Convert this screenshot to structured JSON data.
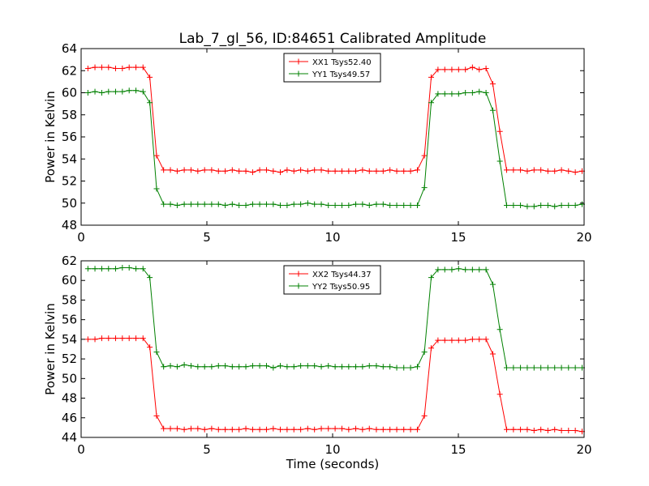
{
  "figure": {
    "title": "Lab_7_gl_56, ID:84651 Calibrated Amplitude"
  },
  "chart_data": [
    {
      "type": "line",
      "title": "Lab_7_gl_56, ID:84651 Calibrated Amplitude",
      "xlabel": "",
      "ylabel": "Power in Kelvin",
      "xlim": [
        0,
        20
      ],
      "ylim": [
        48,
        64
      ],
      "xticks": [
        0,
        5,
        10,
        15,
        20
      ],
      "yticks": [
        48,
        50,
        52,
        54,
        56,
        58,
        60,
        62,
        64
      ],
      "legend_position": "top-center",
      "grid": false,
      "x": [
        0.27,
        0.55,
        0.82,
        1.09,
        1.37,
        1.64,
        1.91,
        2.18,
        2.46,
        2.73,
        3.0,
        3.28,
        3.55,
        3.82,
        4.1,
        4.37,
        4.64,
        4.91,
        5.19,
        5.46,
        5.73,
        6.01,
        6.28,
        6.55,
        6.82,
        7.1,
        7.37,
        7.64,
        7.92,
        8.19,
        8.46,
        8.73,
        9.01,
        9.28,
        9.55,
        9.83,
        10.1,
        10.37,
        10.64,
        10.92,
        11.19,
        11.46,
        11.74,
        12.01,
        12.28,
        12.55,
        12.83,
        13.1,
        13.37,
        13.65,
        13.92,
        14.19,
        14.46,
        14.74,
        15.01,
        15.28,
        15.56,
        15.83,
        16.1,
        16.37,
        16.65,
        16.92,
        17.19,
        17.47,
        17.74,
        18.01,
        18.28,
        18.56,
        18.83,
        19.1,
        19.38,
        19.65,
        19.92
      ],
      "series": [
        {
          "name": "XX1 Tsys52.40",
          "color": "#ff0000",
          "values": [
            62.2,
            62.3,
            62.3,
            62.3,
            62.2,
            62.2,
            62.3,
            62.3,
            62.3,
            61.4,
            54.3,
            53.0,
            53.0,
            52.9,
            53.0,
            53.0,
            52.9,
            53.0,
            53.0,
            52.9,
            52.9,
            53.0,
            52.9,
            52.9,
            52.8,
            53.0,
            53.0,
            52.9,
            52.8,
            53.0,
            52.9,
            53.0,
            52.9,
            53.0,
            53.0,
            52.9,
            52.9,
            52.9,
            52.9,
            52.9,
            53.0,
            52.9,
            52.9,
            52.9,
            53.0,
            52.9,
            52.9,
            52.9,
            53.0,
            54.3,
            61.4,
            62.1,
            62.1,
            62.1,
            62.1,
            62.1,
            62.3,
            62.1,
            62.2,
            60.8,
            56.5,
            53.0,
            53.0,
            53.0,
            52.9,
            53.0,
            53.0,
            52.9,
            52.9,
            53.0,
            52.9,
            52.8,
            52.9
          ]
        },
        {
          "name": "YY1 Tsys49.57",
          "color": "#008000",
          "values": [
            60.0,
            60.1,
            60.0,
            60.1,
            60.1,
            60.1,
            60.2,
            60.2,
            60.1,
            59.1,
            51.3,
            49.9,
            49.9,
            49.8,
            49.9,
            49.9,
            49.9,
            49.9,
            49.9,
            49.9,
            49.8,
            49.9,
            49.8,
            49.8,
            49.9,
            49.9,
            49.9,
            49.9,
            49.8,
            49.8,
            49.9,
            49.9,
            50.0,
            49.9,
            49.9,
            49.8,
            49.8,
            49.8,
            49.8,
            49.9,
            49.9,
            49.8,
            49.9,
            49.9,
            49.8,
            49.8,
            49.8,
            49.8,
            49.8,
            51.4,
            59.1,
            59.9,
            59.9,
            59.9,
            59.9,
            60.0,
            60.0,
            60.1,
            60.0,
            58.4,
            53.8,
            49.8,
            49.8,
            49.8,
            49.7,
            49.7,
            49.8,
            49.8,
            49.7,
            49.8,
            49.8,
            49.8,
            49.9
          ]
        }
      ]
    },
    {
      "type": "line",
      "title": "",
      "xlabel": "Time (seconds)",
      "ylabel": "Power in Kelvin",
      "xlim": [
        0,
        20
      ],
      "ylim": [
        44,
        62
      ],
      "xticks": [
        0,
        5,
        10,
        15,
        20
      ],
      "yticks": [
        44,
        46,
        48,
        50,
        52,
        54,
        56,
        58,
        60,
        62
      ],
      "legend_position": "top-center",
      "grid": false,
      "x": [
        0.27,
        0.55,
        0.82,
        1.09,
        1.37,
        1.64,
        1.91,
        2.18,
        2.46,
        2.73,
        3.0,
        3.28,
        3.55,
        3.82,
        4.1,
        4.37,
        4.64,
        4.91,
        5.19,
        5.46,
        5.73,
        6.01,
        6.28,
        6.55,
        6.82,
        7.1,
        7.37,
        7.64,
        7.92,
        8.19,
        8.46,
        8.73,
        9.01,
        9.28,
        9.55,
        9.83,
        10.1,
        10.37,
        10.64,
        10.92,
        11.19,
        11.46,
        11.74,
        12.01,
        12.28,
        12.55,
        12.83,
        13.1,
        13.37,
        13.65,
        13.92,
        14.19,
        14.46,
        14.74,
        15.01,
        15.28,
        15.56,
        15.83,
        16.1,
        16.37,
        16.65,
        16.92,
        17.19,
        17.47,
        17.74,
        18.01,
        18.28,
        18.56,
        18.83,
        19.1,
        19.38,
        19.65,
        19.92
      ],
      "series": [
        {
          "name": "XX2 Tsys44.37",
          "color": "#ff0000",
          "values": [
            54.0,
            54.0,
            54.1,
            54.1,
            54.1,
            54.1,
            54.1,
            54.1,
            54.1,
            53.2,
            46.2,
            44.9,
            44.9,
            44.9,
            44.8,
            44.9,
            44.9,
            44.8,
            44.9,
            44.8,
            44.8,
            44.8,
            44.8,
            44.9,
            44.8,
            44.8,
            44.8,
            44.9,
            44.8,
            44.8,
            44.8,
            44.8,
            44.9,
            44.8,
            44.9,
            44.9,
            44.9,
            44.9,
            44.8,
            44.9,
            44.8,
            44.9,
            44.8,
            44.8,
            44.8,
            44.8,
            44.8,
            44.8,
            44.8,
            46.2,
            53.1,
            53.9,
            53.9,
            53.9,
            53.9,
            53.9,
            54.0,
            54.0,
            54.0,
            52.5,
            48.4,
            44.8,
            44.8,
            44.8,
            44.8,
            44.7,
            44.8,
            44.7,
            44.8,
            44.7,
            44.7,
            44.7,
            44.6
          ]
        },
        {
          "name": "YY2 Tsys50.95",
          "color": "#008000",
          "values": [
            61.2,
            61.2,
            61.2,
            61.2,
            61.2,
            61.3,
            61.3,
            61.2,
            61.2,
            60.3,
            52.7,
            51.2,
            51.3,
            51.2,
            51.4,
            51.3,
            51.2,
            51.2,
            51.2,
            51.3,
            51.3,
            51.2,
            51.2,
            51.2,
            51.3,
            51.3,
            51.3,
            51.1,
            51.3,
            51.2,
            51.2,
            51.3,
            51.3,
            51.3,
            51.2,
            51.3,
            51.2,
            51.2,
            51.2,
            51.2,
            51.2,
            51.3,
            51.3,
            51.2,
            51.2,
            51.1,
            51.1,
            51.1,
            51.2,
            52.7,
            60.3,
            61.1,
            61.1,
            61.1,
            61.2,
            61.1,
            61.1,
            61.1,
            61.1,
            59.6,
            55.0,
            51.1,
            51.1,
            51.1,
            51.1,
            51.1,
            51.1,
            51.1,
            51.1,
            51.1,
            51.1,
            51.1,
            51.1
          ]
        }
      ]
    }
  ]
}
